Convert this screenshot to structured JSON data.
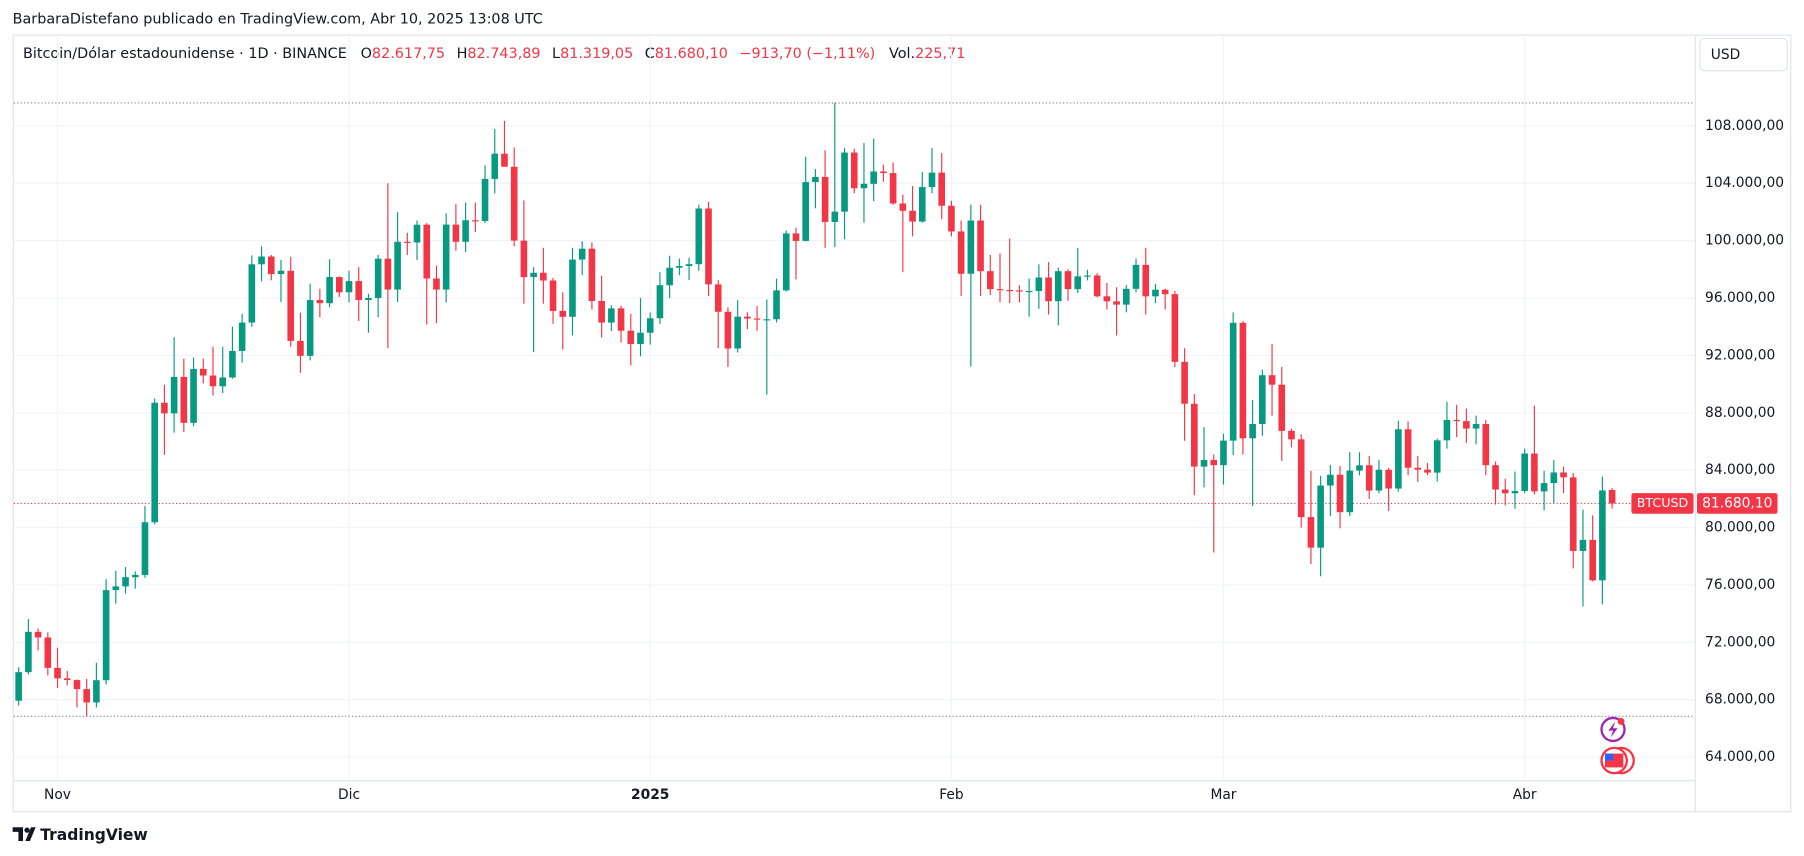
{
  "header": {
    "attribution": "BarbaraDistefano publicado en TradingView.com, Abr 10, 2025 13:08 UTC",
    "symbol": "Bitcoin/Dólar estadounidense · 1D · BINANCE",
    "ohlc": [
      {
        "key": "O",
        "value": "82.617,75"
      },
      {
        "key": "H",
        "value": "82.743,89"
      },
      {
        "key": "L",
        "value": "81.319,05"
      },
      {
        "key": "C",
        "value": "81.680,10"
      }
    ],
    "change": "−913,70 (−1,11%)",
    "volume_key": "Vol.",
    "volume": "225,71",
    "currency": "USD"
  },
  "footer": {
    "brand": "TradingView"
  },
  "chart_data": {
    "type": "candlestick",
    "series": [
      {
        "name": "BTCUSD",
        "up_color": "#089981",
        "down_color": "#f23645",
        "open": [
          67930,
          69920,
          72730,
          72340,
          70220,
          69490,
          69370,
          68740,
          67810,
          69360,
          75640,
          75900,
          76540,
          76700,
          80370,
          88700,
          87960,
          90500,
          87300,
          91060,
          90600,
          89850,
          90460,
          92310,
          94290,
          98350,
          98890,
          97670,
          97900,
          93010,
          91970,
          95860,
          95640,
          97460,
          96400,
          97180,
          95860,
          96000,
          98740,
          96590,
          99920,
          99870,
          101110,
          97360,
          96590,
          101120,
          99920,
          101420,
          101370,
          104300,
          106060,
          105150,
          100000,
          97460,
          97760,
          97220,
          95100,
          94690,
          98680,
          99440,
          95790,
          94290,
          95280,
          93720,
          92790,
          93580,
          94590,
          96890,
          98110,
          98230,
          98360,
          102240,
          96950,
          95040,
          92480,
          94700,
          94570,
          94510,
          94520,
          96530,
          100500,
          99980,
          104080,
          104440,
          101300,
          102020,
          106140,
          103650,
          103960,
          104820,
          104710,
          102590,
          102080,
          101330,
          103730,
          104740,
          102430,
          100640,
          97690,
          101400,
          97870,
          96620,
          96560,
          96530,
          96480,
          96490,
          97430,
          95780,
          97870,
          96620,
          97510,
          97570,
          96120,
          95770,
          95540,
          96640,
          98310,
          96120,
          96580,
          96270,
          91550,
          88630,
          84250,
          84710,
          84350,
          86060,
          94270,
          86220,
          87220,
          90620,
          89960,
          86740,
          86150,
          80730,
          78600,
          82930,
          83680,
          81070,
          83970,
          84340,
          82580,
          84030,
          82720,
          86850,
          84170,
          84040,
          83830,
          86080,
          87500,
          87420,
          86900,
          87220,
          84350,
          82650,
          82390,
          82550,
          85160,
          82520,
          83100,
          83840,
          83500,
          78370,
          79140,
          76320,
          82617.75
        ],
        "high": [
          70270,
          73620,
          72960,
          72700,
          71630,
          70000,
          69420,
          69450,
          70580,
          76400,
          76980,
          77250,
          76950,
          81500,
          89000,
          89950,
          93270,
          91770,
          91850,
          91780,
          92600,
          92600,
          94000,
          94900,
          98970,
          99590,
          99000,
          98650,
          98870,
          94970,
          97000,
          96650,
          98700,
          97500,
          97900,
          98150,
          96300,
          99000,
          104000,
          101980,
          100550,
          101400,
          101220,
          98270,
          101900,
          102540,
          102650,
          102650,
          105250,
          107780,
          108350,
          106500,
          102800,
          98150,
          99500,
          97400,
          96400,
          99500,
          99960,
          99880,
          97550,
          95500,
          95450,
          94900,
          96000,
          95000,
          97800,
          98950,
          98750,
          98800,
          102500,
          102700,
          97250,
          95350,
          95850,
          95000,
          95450,
          95900,
          97350,
          100700,
          100900,
          105850,
          104990,
          106300,
          109600,
          106450,
          106400,
          106800,
          107100,
          105300,
          105450,
          103200,
          103800,
          104800,
          106450,
          106100,
          102780,
          101400,
          102500,
          102500,
          99000,
          99100,
          100150,
          96880,
          97350,
          98350,
          98500,
          98100,
          98000,
          99500,
          97970,
          97730,
          97050,
          96750,
          96900,
          98750,
          99500,
          96980,
          96650,
          96500,
          92500,
          89300,
          87000,
          85100,
          86550,
          95000,
          94400,
          88900,
          91000,
          92800,
          91200,
          86900,
          86500,
          83950,
          83600,
          84350,
          84300,
          85250,
          85250,
          85000,
          84700,
          84150,
          87450,
          87400,
          85000,
          84500,
          86200,
          88760,
          88550,
          88300,
          87800,
          87500,
          84600,
          83400,
          83900,
          85500,
          88500,
          83950,
          84700,
          84250,
          83800,
          81250,
          80850,
          83550,
          82743.89
        ],
        "low": [
          67600,
          69760,
          71440,
          69690,
          68820,
          69000,
          67460,
          66840,
          67460,
          69060,
          74700,
          75400,
          75740,
          76500,
          80220,
          85070,
          86620,
          86670,
          87060,
          90060,
          89200,
          89380,
          90380,
          91500,
          94000,
          97160,
          97230,
          95720,
          92600,
          90790,
          91650,
          94650,
          95360,
          96080,
          95700,
          94400,
          93580,
          94660,
          92500,
          95720,
          99000,
          98650,
          94150,
          94260,
          95690,
          99300,
          99200,
          100600,
          101230,
          103300,
          105320,
          99600,
          95600,
          92230,
          95600,
          94200,
          92400,
          93400,
          97600,
          95200,
          93250,
          93700,
          92900,
          91300,
          91930,
          92750,
          94200,
          96000,
          97600,
          97250,
          97900,
          96130,
          92500,
          91200,
          92200,
          93830,
          93710,
          89260,
          94300,
          96450,
          97300,
          99950,
          102250,
          99500,
          99550,
          100100,
          103300,
          101250,
          102750,
          104100,
          102500,
          97800,
          100300,
          101250,
          103300,
          101500,
          100300,
          96150,
          91230,
          96150,
          96200,
          95700,
          95650,
          95700,
          94700,
          95250,
          94850,
          94100,
          95800,
          96350,
          97230,
          96050,
          95200,
          93390,
          95000,
          96400,
          94850,
          95650,
          95200,
          91180,
          86050,
          82250,
          82800,
          78260,
          83000,
          85050,
          85100,
          81500,
          86400,
          87800,
          84650,
          85600,
          80000,
          77460,
          76600,
          80800,
          79950,
          80800,
          83650,
          82000,
          82400,
          81150,
          82500,
          83650,
          83180,
          83650,
          83200,
          85500,
          86300,
          85900,
          85800,
          83650,
          81600,
          81550,
          81300,
          82400,
          82300,
          81200,
          81700,
          82400,
          77150,
          74500,
          76250,
          74650,
          81319.05
        ],
        "close": [
          69920,
          72730,
          72340,
          70220,
          69490,
          69370,
          68740,
          67810,
          69360,
          75640,
          75900,
          76540,
          76700,
          80370,
          88700,
          87960,
          90500,
          87300,
          91060,
          90600,
          89850,
          90460,
          92310,
          94290,
          98350,
          98890,
          97670,
          97900,
          93010,
          91970,
          95860,
          95640,
          97460,
          96400,
          97180,
          95860,
          96000,
          98740,
          96590,
          99920,
          99870,
          101110,
          97360,
          96590,
          101120,
          99920,
          101420,
          101370,
          104300,
          106060,
          105150,
          100000,
          97460,
          97760,
          97220,
          95100,
          94690,
          98680,
          99440,
          95790,
          94290,
          95280,
          93720,
          92790,
          93580,
          94590,
          96890,
          98110,
          98230,
          98360,
          102240,
          96950,
          95040,
          92480,
          94700,
          94570,
          94510,
          94520,
          96530,
          100500,
          99980,
          104080,
          104440,
          101300,
          102020,
          106140,
          103650,
          103960,
          104820,
          104710,
          102590,
          102080,
          101330,
          103730,
          104740,
          102430,
          100640,
          97690,
          101400,
          97870,
          96620,
          96560,
          96530,
          96480,
          96490,
          97430,
          95780,
          97870,
          96620,
          97510,
          97570,
          96120,
          95770,
          95540,
          96640,
          98310,
          96120,
          96580,
          96270,
          91550,
          88630,
          84250,
          84710,
          84350,
          86060,
          94270,
          86220,
          87220,
          90620,
          89960,
          86740,
          86150,
          80730,
          78600,
          82930,
          83680,
          81070,
          83970,
          84340,
          82580,
          84030,
          82720,
          86850,
          84170,
          84040,
          83830,
          86080,
          87500,
          87420,
          86900,
          87220,
          84350,
          82650,
          82390,
          82550,
          85160,
          82520,
          83100,
          83840,
          83500,
          78370,
          79140,
          76320,
          82590,
          81680.1
        ],
        "last_price_label": "81.680,10"
      }
    ],
    "xlim": [
      -0.5,
      172.5
    ],
    "xticks": [
      {
        "value": 4,
        "label": "Nov"
      },
      {
        "value": 34,
        "label": "Dic"
      },
      {
        "value": 65,
        "label": "2025"
      },
      {
        "value": 96,
        "label": "Feb"
      },
      {
        "value": 124,
        "label": "Mar"
      },
      {
        "value": 155,
        "label": "Abr"
      }
    ],
    "ylim": [
      62400,
      111800
    ],
    "yticks": [
      {
        "value": 64000,
        "label": "64.000,00"
      },
      {
        "value": 68000,
        "label": "68.000,00"
      },
      {
        "value": 72000,
        "label": "72.000,00"
      },
      {
        "value": 76000,
        "label": "76.000,00"
      },
      {
        "value": 80000,
        "label": "80.000,00"
      },
      {
        "value": 84000,
        "label": "84.000,00"
      },
      {
        "value": 88000,
        "label": "88.000,00"
      },
      {
        "value": 92000,
        "label": "92.000,00"
      },
      {
        "value": 96000,
        "label": "96.000,00"
      },
      {
        "value": 100000,
        "label": "100.000,00"
      },
      {
        "value": 104000,
        "label": "104.000,00"
      },
      {
        "value": 108000,
        "label": "108.000,00"
      }
    ],
    "grid": true
  }
}
